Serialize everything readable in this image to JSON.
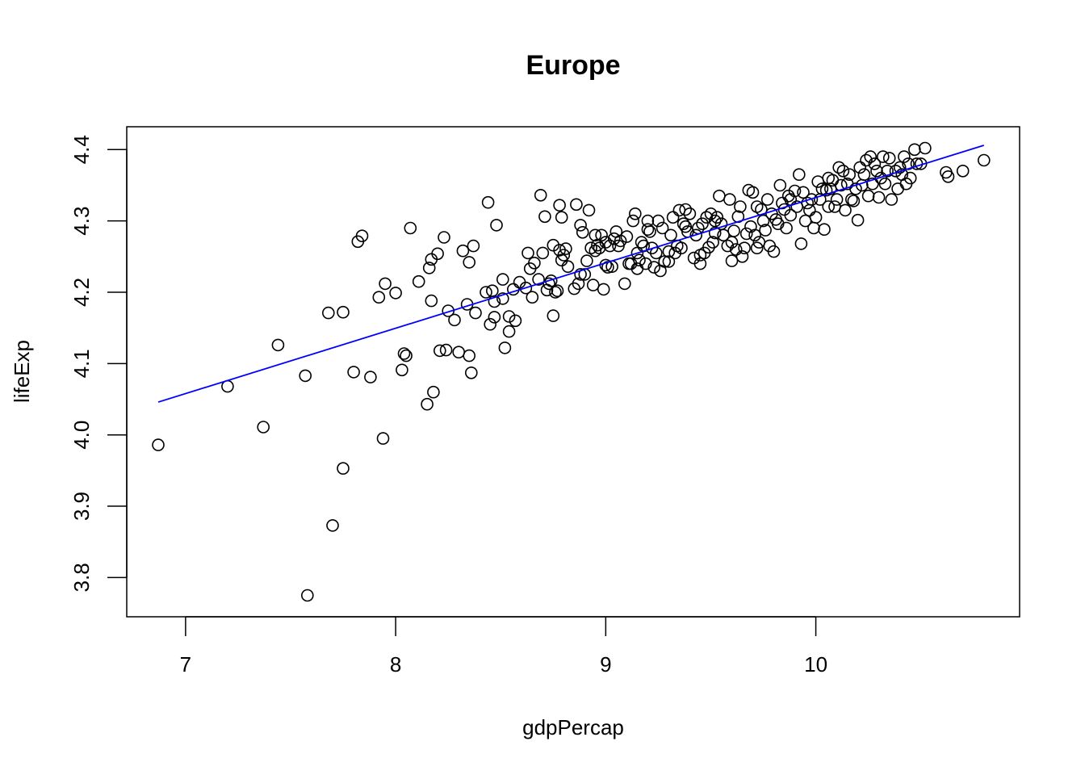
{
  "chart_data": {
    "type": "scatter",
    "title": "Europe",
    "xlabel": "gdpPercap",
    "ylabel": "lifeExp",
    "xlim": [
      6.72,
      10.97
    ],
    "ylim": [
      3.745,
      4.432
    ],
    "x_ticks": [
      7,
      8,
      9,
      10
    ],
    "x_tick_labels": [
      "7",
      "8",
      "9",
      "10"
    ],
    "y_ticks": [
      3.8,
      3.9,
      4.0,
      4.1,
      4.2,
      4.3,
      4.4
    ],
    "y_tick_labels": [
      "3.8",
      "3.9",
      "4.0",
      "4.1",
      "4.2",
      "4.3",
      "4.4"
    ],
    "grid": false,
    "legend": "none",
    "point_color": "#000000",
    "line_color": "#0000ff",
    "fit_line": {
      "x": [
        6.87,
        10.8
      ],
      "y": [
        4.046,
        4.406
      ]
    },
    "points": [
      [
        6.87,
        3.986
      ],
      [
        7.2,
        4.068
      ],
      [
        7.37,
        4.011
      ],
      [
        7.44,
        4.126
      ],
      [
        7.57,
        4.083
      ],
      [
        7.58,
        3.775
      ],
      [
        7.68,
        4.171
      ],
      [
        7.7,
        3.873
      ],
      [
        7.75,
        4.172
      ],
      [
        7.75,
        3.953
      ],
      [
        7.8,
        4.088
      ],
      [
        7.82,
        4.271
      ],
      [
        7.84,
        4.279
      ],
      [
        7.88,
        4.081
      ],
      [
        7.92,
        4.193
      ],
      [
        7.94,
        3.995
      ],
      [
        7.95,
        4.212
      ],
      [
        8.0,
        4.199
      ],
      [
        8.03,
        4.091
      ],
      [
        8.04,
        4.114
      ],
      [
        8.05,
        4.111
      ],
      [
        8.07,
        4.29
      ],
      [
        8.11,
        4.215
      ],
      [
        8.15,
        4.043
      ],
      [
        8.16,
        4.234
      ],
      [
        8.17,
        4.246
      ],
      [
        8.17,
        4.188
      ],
      [
        8.18,
        4.06
      ],
      [
        8.2,
        4.254
      ],
      [
        8.21,
        4.118
      ],
      [
        8.23,
        4.277
      ],
      [
        8.24,
        4.119
      ],
      [
        8.25,
        4.174
      ],
      [
        8.28,
        4.161
      ],
      [
        8.3,
        4.116
      ],
      [
        8.32,
        4.258
      ],
      [
        8.34,
        4.183
      ],
      [
        8.35,
        4.242
      ],
      [
        8.35,
        4.111
      ],
      [
        8.36,
        4.087
      ],
      [
        8.37,
        4.265
      ],
      [
        8.38,
        4.171
      ],
      [
        8.43,
        4.2
      ],
      [
        8.44,
        4.326
      ],
      [
        8.45,
        4.155
      ],
      [
        8.46,
        4.202
      ],
      [
        8.47,
        4.165
      ],
      [
        8.47,
        4.187
      ],
      [
        8.48,
        4.294
      ],
      [
        8.51,
        4.218
      ],
      [
        8.51,
        4.191
      ],
      [
        8.52,
        4.122
      ],
      [
        8.54,
        4.166
      ],
      [
        8.54,
        4.145
      ],
      [
        8.56,
        4.204
      ],
      [
        8.57,
        4.16
      ],
      [
        8.59,
        4.214
      ],
      [
        8.62,
        4.206
      ],
      [
        8.63,
        4.255
      ],
      [
        8.64,
        4.233
      ],
      [
        8.65,
        4.193
      ],
      [
        8.66,
        4.241
      ],
      [
        8.68,
        4.218
      ],
      [
        8.69,
        4.336
      ],
      [
        8.7,
        4.255
      ],
      [
        8.71,
        4.306
      ],
      [
        8.72,
        4.203
      ],
      [
        8.73,
        4.212
      ],
      [
        8.74,
        4.216
      ],
      [
        8.75,
        4.167
      ],
      [
        8.75,
        4.266
      ],
      [
        8.76,
        4.2
      ],
      [
        8.77,
        4.202
      ],
      [
        8.78,
        4.322
      ],
      [
        8.78,
        4.259
      ],
      [
        8.79,
        4.245
      ],
      [
        8.79,
        4.305
      ],
      [
        8.8,
        4.252
      ],
      [
        8.81,
        4.261
      ],
      [
        8.82,
        4.236
      ],
      [
        8.85,
        4.205
      ],
      [
        8.86,
        4.323
      ],
      [
        8.87,
        4.212
      ],
      [
        8.88,
        4.294
      ],
      [
        8.89,
        4.284
      ],
      [
        8.9,
        4.225
      ],
      [
        8.91,
        4.244
      ],
      [
        8.92,
        4.315
      ],
      [
        8.93,
        4.262
      ],
      [
        8.94,
        4.21
      ],
      [
        8.95,
        4.28
      ],
      [
        8.96,
        4.266
      ],
      [
        8.97,
        4.262
      ],
      [
        8.98,
        4.28
      ],
      [
        8.99,
        4.204
      ],
      [
        9.0,
        4.27
      ],
      [
        9.01,
        4.235
      ],
      [
        9.02,
        4.265
      ],
      [
        9.03,
        4.236
      ],
      [
        9.04,
        4.275
      ],
      [
        9.05,
        4.285
      ],
      [
        9.06,
        4.265
      ],
      [
        9.07,
        4.272
      ],
      [
        9.09,
        4.212
      ],
      [
        9.1,
        4.278
      ],
      [
        9.11,
        4.24
      ],
      [
        9.12,
        4.24
      ],
      [
        9.13,
        4.3
      ],
      [
        9.14,
        4.31
      ],
      [
        9.15,
        4.255
      ],
      [
        9.16,
        4.245
      ],
      [
        9.17,
        4.27
      ],
      [
        9.18,
        4.265
      ],
      [
        9.19,
        4.24
      ],
      [
        9.2,
        4.3
      ],
      [
        9.21,
        4.285
      ],
      [
        9.22,
        4.262
      ],
      [
        9.23,
        4.235
      ],
      [
        9.24,
        4.255
      ],
      [
        9.25,
        4.3
      ],
      [
        9.26,
        4.23
      ],
      [
        9.27,
        4.29
      ],
      [
        9.28,
        4.243
      ],
      [
        9.3,
        4.257
      ],
      [
        9.31,
        4.28
      ],
      [
        9.32,
        4.305
      ],
      [
        9.33,
        4.255
      ],
      [
        9.34,
        4.265
      ],
      [
        9.35,
        4.315
      ],
      [
        9.36,
        4.262
      ],
      [
        9.37,
        4.296
      ],
      [
        9.38,
        4.316
      ],
      [
        9.39,
        4.285
      ],
      [
        9.4,
        4.31
      ],
      [
        9.42,
        4.248
      ],
      [
        9.43,
        4.28
      ],
      [
        9.44,
        4.29
      ],
      [
        9.45,
        4.24
      ],
      [
        9.46,
        4.296
      ],
      [
        9.47,
        4.255
      ],
      [
        9.48,
        4.305
      ],
      [
        9.49,
        4.263
      ],
      [
        9.5,
        4.31
      ],
      [
        9.51,
        4.27
      ],
      [
        9.52,
        4.283
      ],
      [
        9.53,
        4.305
      ],
      [
        9.54,
        4.335
      ],
      [
        9.55,
        4.296
      ],
      [
        9.56,
        4.28
      ],
      [
        9.58,
        4.265
      ],
      [
        9.59,
        4.33
      ],
      [
        9.6,
        4.244
      ],
      [
        9.61,
        4.286
      ],
      [
        9.62,
        4.26
      ],
      [
        9.63,
        4.306
      ],
      [
        9.64,
        4.32
      ],
      [
        9.65,
        4.25
      ],
      [
        9.66,
        4.262
      ],
      [
        9.67,
        4.282
      ],
      [
        9.68,
        4.343
      ],
      [
        9.69,
        4.292
      ],
      [
        9.7,
        4.34
      ],
      [
        9.71,
        4.28
      ],
      [
        9.72,
        4.262
      ],
      [
        9.73,
        4.27
      ],
      [
        9.74,
        4.316
      ],
      [
        9.75,
        4.3
      ],
      [
        9.76,
        4.287
      ],
      [
        9.77,
        4.33
      ],
      [
        9.78,
        4.265
      ],
      [
        9.79,
        4.31
      ],
      [
        9.8,
        4.257
      ],
      [
        9.81,
        4.302
      ],
      [
        9.82,
        4.296
      ],
      [
        9.83,
        4.35
      ],
      [
        9.84,
        4.325
      ],
      [
        9.85,
        4.316
      ],
      [
        9.86,
        4.29
      ],
      [
        9.87,
        4.335
      ],
      [
        9.88,
        4.308
      ],
      [
        9.9,
        4.342
      ],
      [
        9.91,
        4.32
      ],
      [
        9.92,
        4.365
      ],
      [
        9.93,
        4.268
      ],
      [
        9.94,
        4.34
      ],
      [
        9.95,
        4.3
      ],
      [
        9.96,
        4.325
      ],
      [
        9.97,
        4.315
      ],
      [
        9.98,
        4.33
      ],
      [
        9.99,
        4.29
      ],
      [
        10.0,
        4.305
      ],
      [
        10.01,
        4.355
      ],
      [
        10.02,
        4.33
      ],
      [
        10.03,
        4.345
      ],
      [
        10.04,
        4.288
      ],
      [
        10.05,
        4.343
      ],
      [
        10.06,
        4.32
      ],
      [
        10.07,
        4.345
      ],
      [
        10.08,
        4.357
      ],
      [
        10.09,
        4.32
      ],
      [
        10.1,
        4.33
      ],
      [
        10.11,
        4.375
      ],
      [
        10.12,
        4.35
      ],
      [
        10.13,
        4.37
      ],
      [
        10.14,
        4.315
      ],
      [
        10.15,
        4.352
      ],
      [
        10.16,
        4.365
      ],
      [
        10.17,
        4.33
      ],
      [
        10.18,
        4.328
      ],
      [
        10.19,
        4.345
      ],
      [
        10.2,
        4.301
      ],
      [
        10.21,
        4.375
      ],
      [
        10.22,
        4.35
      ],
      [
        10.23,
        4.365
      ],
      [
        10.24,
        4.385
      ],
      [
        10.25,
        4.335
      ],
      [
        10.26,
        4.39
      ],
      [
        10.27,
        4.352
      ],
      [
        10.28,
        4.38
      ],
      [
        10.29,
        4.37
      ],
      [
        10.3,
        4.333
      ],
      [
        10.31,
        4.36
      ],
      [
        10.32,
        4.39
      ],
      [
        10.33,
        4.352
      ],
      [
        10.34,
        4.37
      ],
      [
        10.35,
        4.388
      ],
      [
        10.36,
        4.33
      ],
      [
        10.38,
        4.37
      ],
      [
        10.39,
        4.345
      ],
      [
        10.4,
        4.375
      ],
      [
        10.41,
        4.365
      ],
      [
        10.42,
        4.39
      ],
      [
        10.43,
        4.352
      ],
      [
        10.44,
        4.38
      ],
      [
        10.45,
        4.36
      ],
      [
        10.47,
        4.4
      ],
      [
        10.48,
        4.38
      ],
      [
        10.5,
        4.38
      ],
      [
        10.52,
        4.402
      ],
      [
        10.62,
        4.368
      ],
      [
        10.63,
        4.362
      ],
      [
        10.7,
        4.37
      ],
      [
        10.8,
        4.385
      ],
      [
        9.45,
        4.252
      ],
      [
        9.6,
        4.27
      ],
      [
        9.15,
        4.233
      ],
      [
        9.3,
        4.243
      ],
      [
        8.95,
        4.258
      ],
      [
        10.06,
        4.36
      ],
      [
        9.88,
        4.33
      ],
      [
        9.72,
        4.32
      ],
      [
        9.52,
        4.3
      ],
      [
        9.38,
        4.292
      ],
      [
        9.2,
        4.288
      ],
      [
        9.0,
        4.238
      ],
      [
        8.88,
        4.225
      ]
    ]
  }
}
